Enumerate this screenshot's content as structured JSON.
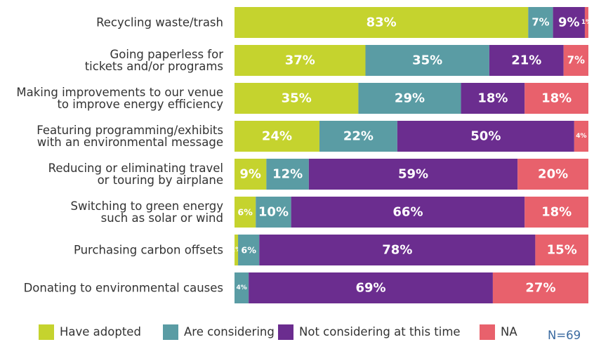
{
  "chart_data": {
    "type": "bar",
    "orientation": "horizontal",
    "stacked": true,
    "categories": [
      "Recycling waste/trash",
      "Going paperless for\ntickets and/or programs",
      "Making improvements to our venue\nto improve energy efficiency",
      "Featuring programming/exhibits\nwith an environmental message",
      "Reducing or eliminating travel\nor touring by airplane",
      "Switching to green energy\nsuch as solar or wind",
      "Purchasing carbon offsets",
      "Donating to environmental causes"
    ],
    "series": [
      {
        "name": "Have adopted",
        "color": "#c5d32e",
        "values": [
          83,
          37,
          35,
          24,
          9,
          6,
          1,
          0
        ],
        "value_labels": [
          "83%",
          "37%",
          "35%",
          "24%",
          "9%",
          "6%",
          "1%",
          null
        ]
      },
      {
        "name": "Are considering",
        "color": "#5a9ca4",
        "values": [
          7,
          35,
          29,
          22,
          12,
          10,
          6,
          4
        ],
        "value_labels": [
          "7%",
          "35%",
          "29%",
          "22%",
          "12%",
          "10%",
          "6%",
          "4%"
        ]
      },
      {
        "name": "Not considering at this time",
        "color": "#6b2d8f",
        "values": [
          9,
          21,
          18,
          50,
          59,
          66,
          78,
          69
        ],
        "value_labels": [
          "9%",
          "21%",
          "18%",
          "50%",
          "59%",
          "66%",
          "78%",
          "69%"
        ]
      },
      {
        "name": "NA",
        "color": "#e8616c",
        "values": [
          1,
          7,
          18,
          4,
          20,
          18,
          15,
          27
        ],
        "value_labels": [
          "1%",
          "7%",
          "18%",
          "4%",
          "20%",
          "18%",
          "15%",
          "27%"
        ]
      }
    ],
    "xlim": [
      0,
      100
    ],
    "legend": "bottom",
    "annotation": "N=69"
  }
}
